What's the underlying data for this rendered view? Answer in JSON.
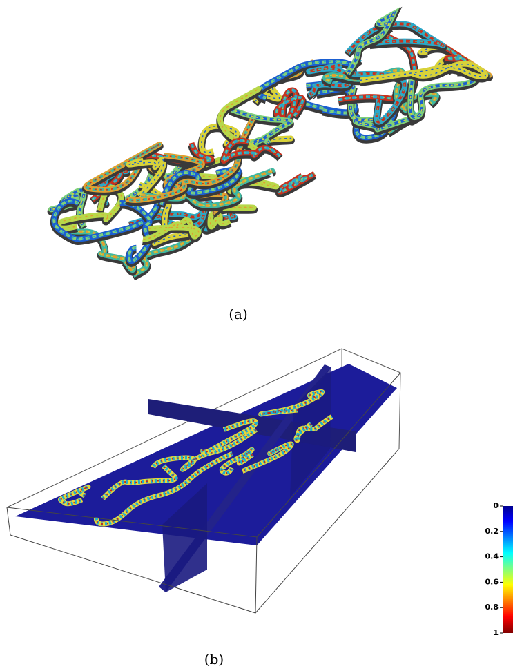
{
  "figure": {
    "panels": [
      {
        "caption": "(a)"
      },
      {
        "caption": "(b)"
      }
    ],
    "colorbar": {
      "lim": [
        0,
        1
      ],
      "ticks": [
        0,
        0.2,
        0.4,
        0.6,
        0.8,
        1
      ]
    }
  }
}
